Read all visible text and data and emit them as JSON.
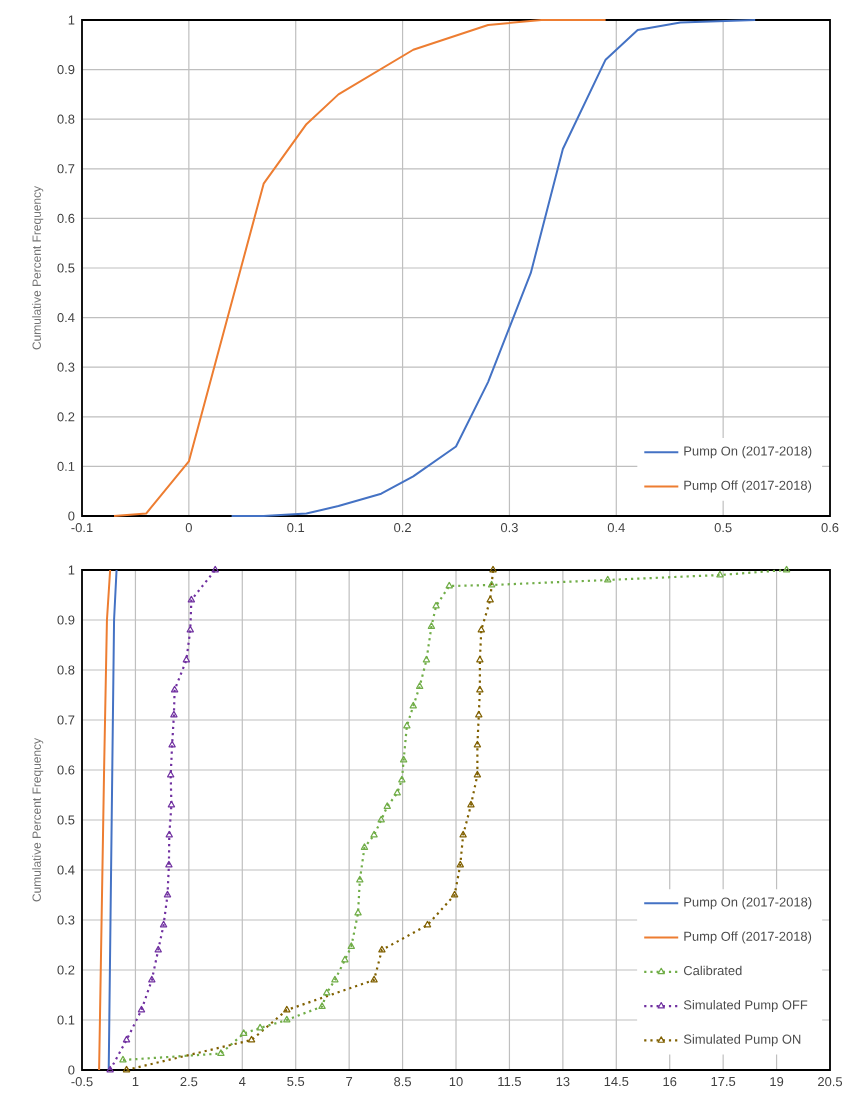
{
  "chart_data": [
    {
      "type": "line",
      "ylabel": "Cumulative Percent Frequency",
      "xlim": [
        -0.1,
        0.6
      ],
      "ylim": [
        0,
        1
      ],
      "xticks": [
        -0.1,
        0,
        0.1,
        0.2,
        0.3,
        0.4,
        0.5,
        0.6
      ],
      "yticks": [
        0,
        0.1,
        0.2,
        0.3,
        0.4,
        0.5,
        0.6,
        0.7,
        0.8,
        0.9,
        1
      ],
      "grid": true,
      "legend": "bottom right",
      "series": [
        {
          "name": "Pump On (2017-2018)",
          "color": "#4472c4",
          "x": [
            0.04,
            0.07,
            0.11,
            0.14,
            0.18,
            0.21,
            0.25,
            0.28,
            0.32,
            0.35,
            0.39,
            0.42,
            0.46,
            0.53
          ],
          "values": [
            0,
            0,
            0.005,
            0.02,
            0.045,
            0.08,
            0.14,
            0.27,
            0.49,
            0.74,
            0.92,
            0.98,
            0.995,
            1
          ]
        },
        {
          "name": "Pump Off (2017-2018)",
          "color": "#ed7d31",
          "x": [
            -0.07,
            -0.04,
            0,
            0.035,
            0.07,
            0.11,
            0.14,
            0.21,
            0.28,
            0.33,
            0.39
          ],
          "values": [
            0,
            0.005,
            0.11,
            0.39,
            0.67,
            0.79,
            0.85,
            0.94,
            0.99,
            1,
            1
          ]
        }
      ]
    },
    {
      "type": "line",
      "ylabel": "Cumulative Percent Frequency",
      "xlim": [
        -0.5,
        20.5
      ],
      "ylim": [
        0,
        1
      ],
      "xticks": [
        -0.5,
        1,
        2.5,
        4,
        5.5,
        7,
        8.5,
        10,
        11.5,
        13,
        14.5,
        16,
        17.5,
        19,
        20.5
      ],
      "yticks": [
        0,
        0.1,
        0.2,
        0.3,
        0.4,
        0.5,
        0.6,
        0.7,
        0.8,
        0.9,
        1
      ],
      "grid": true,
      "legend": "bottom right",
      "series": [
        {
          "name": "Pump On (2017-2018)",
          "color": "#4472c4",
          "x": [
            0.25,
            0.3,
            0.35,
            0.4,
            0.47
          ],
          "values": [
            0,
            0.3,
            0.6,
            0.9,
            1
          ]
        },
        {
          "name": "Pump Off (2017-2018)",
          "color": "#ed7d31",
          "x": [
            -0.02,
            0.05,
            0.12,
            0.2,
            0.29
          ],
          "values": [
            0,
            0.3,
            0.6,
            0.9,
            1
          ]
        },
        {
          "name": "Calibrated",
          "color": "#70ad47",
          "marker": "triangle",
          "line_style": "dotted",
          "x": [
            0.65,
            3.4,
            4.04,
            4.5,
            5.25,
            6.24,
            6.37,
            6.6,
            6.88,
            7.06,
            7.25,
            7.3,
            7.43,
            7.7,
            7.9,
            8.07,
            8.35,
            8.48,
            8.53,
            8.62,
            8.8,
            8.98,
            9.17,
            9.31,
            9.44,
            9.81,
            11.0,
            14.26,
            17.41,
            19.28
          ],
          "values": [
            0.02,
            0.033,
            0.073,
            0.084,
            0.1,
            0.127,
            0.154,
            0.18,
            0.22,
            0.247,
            0.314,
            0.38,
            0.445,
            0.47,
            0.5,
            0.527,
            0.554,
            0.58,
            0.62,
            0.688,
            0.728,
            0.767,
            0.82,
            0.887,
            0.928,
            0.968,
            0.97,
            0.98,
            0.99,
            1
          ]
        },
        {
          "name": "Simulated Pump OFF",
          "color": "#7030a0",
          "marker": "triangle",
          "line_style": "dotted",
          "x": [
            0.29,
            0.75,
            1.17,
            1.46,
            1.64,
            1.79,
            1.9,
            1.94,
            1.95,
            2.01,
            1.99,
            2.03,
            2.08,
            2.1,
            2.43,
            2.54,
            2.57,
            3.24
          ],
          "values": [
            0,
            0.06,
            0.12,
            0.18,
            0.24,
            0.29,
            0.35,
            0.41,
            0.47,
            0.53,
            0.59,
            0.65,
            0.71,
            0.76,
            0.82,
            0.88,
            0.94,
            1
          ]
        },
        {
          "name": "Simulated Pump ON",
          "color": "#806000",
          "marker": "triangle",
          "line_style": "dotted",
          "x": [
            0.75,
            4.26,
            5.25,
            7.7,
            7.92,
            9.2,
            9.96,
            10.12,
            10.2,
            10.42,
            10.6,
            10.6,
            10.64,
            10.67,
            10.67,
            10.71,
            10.96,
            11.04
          ],
          "values": [
            0,
            0.06,
            0.12,
            0.18,
            0.24,
            0.29,
            0.35,
            0.41,
            0.47,
            0.53,
            0.59,
            0.65,
            0.71,
            0.76,
            0.82,
            0.88,
            0.94,
            1
          ]
        }
      ]
    }
  ]
}
